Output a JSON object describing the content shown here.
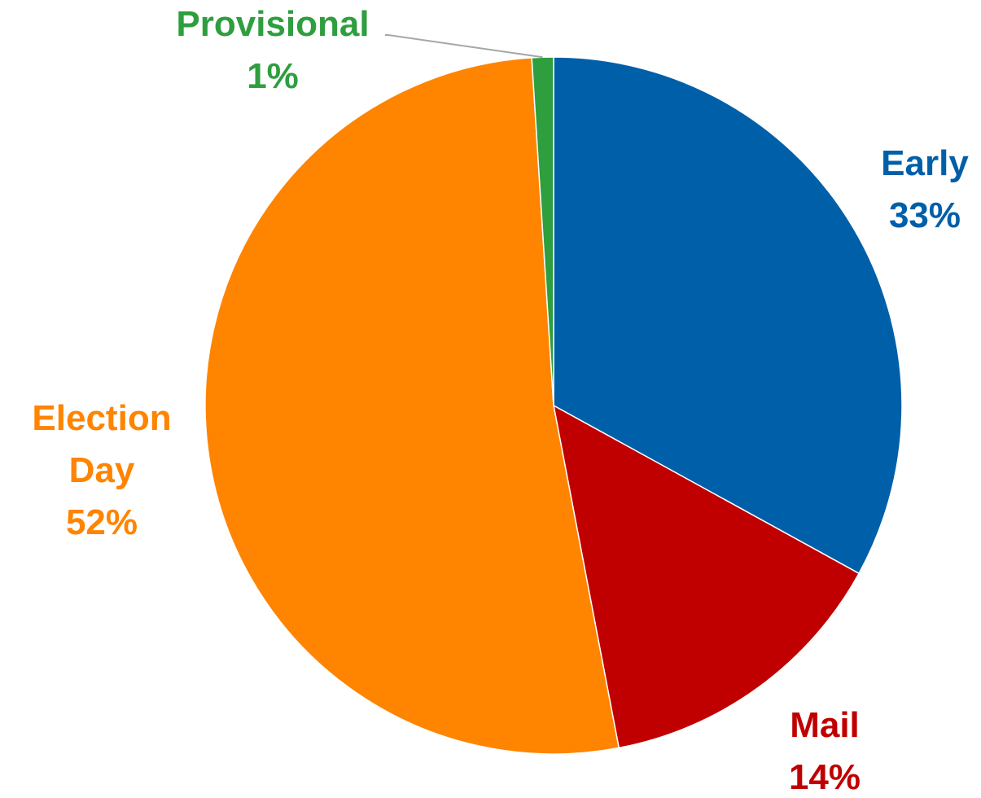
{
  "chart_data": {
    "type": "pie",
    "title": "",
    "slices": [
      {
        "name": "Early",
        "value": 33,
        "percent_label": "33%",
        "color": "#005FA9"
      },
      {
        "name": "Mail",
        "value": 14,
        "percent_label": "14%",
        "color": "#C00000"
      },
      {
        "name": "Election Day",
        "value": 52,
        "percent_label": "52%",
        "color": "#FF8400"
      },
      {
        "name": "Provisional",
        "value": 1,
        "percent_label": "1%",
        "color": "#2E9E3F"
      }
    ],
    "start_angle": "12 o'clock",
    "direction": "clockwise",
    "legend": "none",
    "data_labels": "category name and percentage, outside slices"
  }
}
